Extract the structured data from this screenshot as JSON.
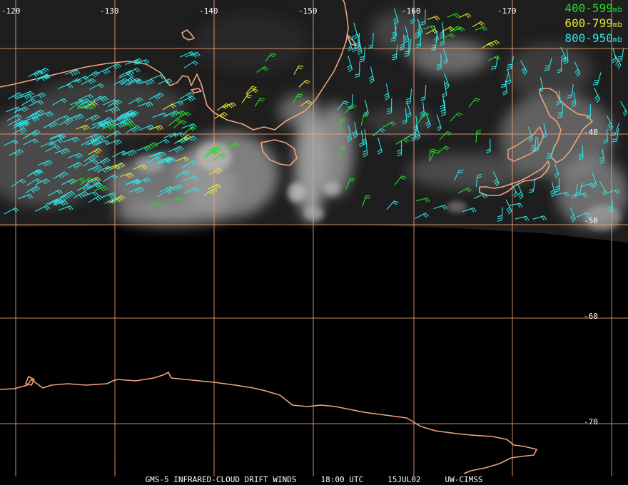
{
  "colors": {
    "grid": "#f2a37c",
    "coast": "#f2a37c",
    "band_400_599": "#22dd22",
    "band_600_799": "#e6e62e",
    "band_800_950": "#2ee6e6"
  },
  "grid": {
    "longitude_labels": [
      "-120",
      "-130",
      "-140",
      "-150",
      "-160",
      "-170"
    ],
    "latitude_labels": [
      "-40",
      "-50",
      "-60",
      "-70"
    ]
  },
  "legend": {
    "items": [
      {
        "range": "400-599",
        "unit": "mb",
        "color": "#22dd22"
      },
      {
        "range": "600-799",
        "unit": "mb",
        "color": "#e6e62e"
      },
      {
        "range": "800-950",
        "unit": "mb",
        "color": "#2ee6e6"
      }
    ]
  },
  "caption": {
    "product": "GMS-5 INFRARED-CLOUD DRIFT WINDS",
    "time": "18:00 UTC",
    "date": "15JUL02",
    "source": "UW-CIMSS"
  }
}
